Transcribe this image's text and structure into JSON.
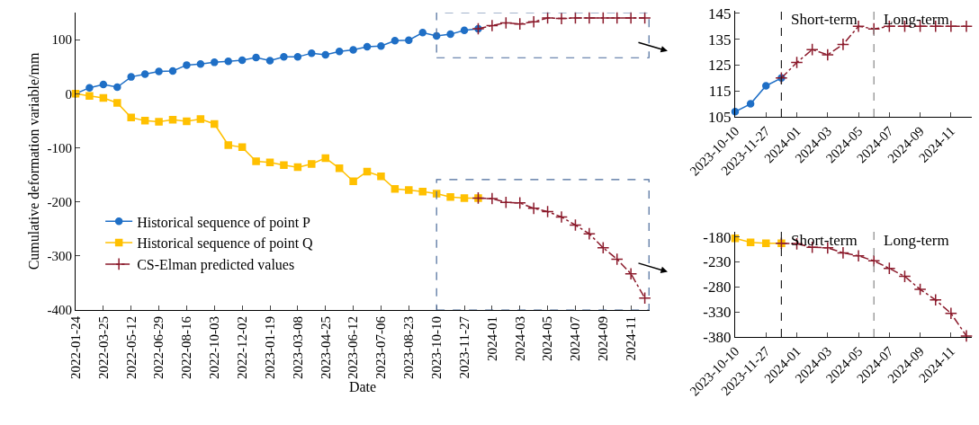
{
  "chart_data": [
    {
      "type": "line",
      "xlabel": "Date",
      "ylabel": "Cumulative deformation variable/mm",
      "categories": [
        "2022-01-24",
        null,
        "2022-03-25",
        null,
        "2022-05-12",
        null,
        "2022-06-29",
        null,
        "2022-08-16",
        null,
        "2022-10-03",
        null,
        "2022-12-02",
        null,
        "2023-01-19",
        null,
        "2023-03-08",
        null,
        "2023-04-25",
        null,
        "2023-06-12",
        null,
        "2023-07-06",
        null,
        "2023-08-23",
        null,
        "2023-10-10",
        null,
        "2023-11-27",
        null,
        "2024-01",
        null,
        "2024-03",
        null,
        "2024-05",
        null,
        "2024-07",
        null,
        "2024-09",
        null,
        "2024-11",
        null
      ],
      "series": [
        {
          "name": "Historical sequence of point P",
          "color": "#1f6fc6",
          "marker": "circle",
          "line_style": "solid",
          "values": [
            0,
            11,
            17,
            12,
            31,
            36,
            41,
            42,
            53,
            55,
            58,
            60,
            62,
            67,
            61,
            68,
            68,
            75,
            72,
            78,
            81,
            87,
            88,
            98,
            99,
            113,
            107,
            110,
            117,
            120,
            null,
            null,
            null,
            null,
            null,
            null,
            null,
            null,
            null,
            null,
            null,
            null
          ]
        },
        {
          "name": "Historical sequence of point Q",
          "color": "#ffc000",
          "marker": "square",
          "line_style": "solid",
          "values": [
            0,
            -4,
            -8,
            -17,
            -44,
            -50,
            -52,
            -48,
            -51,
            -47,
            -56,
            -95,
            -99,
            -125,
            -127,
            -132,
            -136,
            -130,
            -119,
            -138,
            -162,
            -144,
            -153,
            -176,
            -178,
            -181,
            -185,
            -191,
            -193,
            -193,
            null,
            null,
            null,
            null,
            null,
            null,
            null,
            null,
            null,
            null,
            null,
            null
          ]
        },
        {
          "name": "CS-Elman predicted values",
          "color": "#8b1a2b",
          "marker": "cross",
          "line_style": "dashed",
          "values": [
            null,
            null,
            null,
            null,
            null,
            null,
            null,
            null,
            null,
            null,
            null,
            null,
            null,
            null,
            null,
            null,
            null,
            null,
            null,
            null,
            null,
            null,
            null,
            null,
            null,
            null,
            null,
            null,
            null,
            120,
            126,
            131,
            129,
            133,
            140,
            139,
            140,
            140,
            140,
            140,
            140,
            140
          ]
        },
        {
          "color": "#8b1a2b",
          "marker": "cross",
          "line_style": "dashed",
          "values": [
            null,
            null,
            null,
            null,
            null,
            null,
            null,
            null,
            null,
            null,
            null,
            null,
            null,
            null,
            null,
            null,
            null,
            null,
            null,
            null,
            null,
            null,
            null,
            null,
            null,
            null,
            null,
            null,
            null,
            -193,
            -194,
            -201,
            -202,
            -212,
            -218,
            -228,
            -243,
            -259,
            -285,
            -306,
            -333,
            -378
          ]
        }
      ],
      "ylim": [
        -400,
        150
      ],
      "yticks": [
        -400,
        -300,
        -200,
        -100,
        0,
        100
      ],
      "legend": "bottom left"
    },
    {
      "type": "line",
      "categories": [
        "2023-10-10",
        null,
        "2023-11-27",
        null,
        "2024-01",
        null,
        "2024-03",
        null,
        "2024-05",
        null,
        "2024-07",
        null,
        "2024-09",
        null,
        "2024-11",
        null
      ],
      "series": [
        {
          "color": "#1f6fc6",
          "marker": "circle",
          "line_style": "solid",
          "values": [
            107,
            110,
            117,
            120,
            null,
            null,
            null,
            null,
            null,
            null,
            null,
            null,
            null,
            null,
            null,
            null
          ]
        },
        {
          "color": "#8b1a2b",
          "marker": "cross",
          "line_style": "dashed",
          "values": [
            null,
            null,
            null,
            120,
            126,
            131,
            129,
            133,
            140,
            139,
            140,
            140,
            140,
            140,
            140,
            140
          ]
        }
      ],
      "ylim": [
        105,
        146
      ],
      "yticks": [
        105,
        115,
        125,
        135,
        145
      ],
      "legend": false,
      "annotations": [
        "Short-term",
        "Long-term"
      ]
    },
    {
      "type": "line",
      "categories": [
        "2023-10-10",
        null,
        "2023-11-27",
        null,
        "2024-01",
        null,
        "2024-03",
        null,
        "2024-05",
        null,
        "2024-07",
        null,
        "2024-09",
        null,
        "2024-11",
        null
      ],
      "series": [
        {
          "color": "#ffc000",
          "marker": "square",
          "line_style": "solid",
          "values": [
            -183,
            -191,
            -193,
            -193,
            null,
            null,
            null,
            null,
            null,
            null,
            null,
            null,
            null,
            null,
            null,
            null
          ]
        },
        {
          "color": "#8b1a2b",
          "marker": "cross",
          "line_style": "dashed",
          "values": [
            null,
            null,
            null,
            -193,
            -194,
            -201,
            -202,
            -212,
            -218,
            -228,
            -243,
            -259,
            -285,
            -306,
            -333,
            -378
          ]
        }
      ],
      "ylim": [
        -380,
        -170
      ],
      "yticks": [
        -380,
        -330,
        -280,
        -230,
        -180
      ],
      "legend": false,
      "annotations": [
        "Short-term",
        "Long-term"
      ]
    }
  ]
}
